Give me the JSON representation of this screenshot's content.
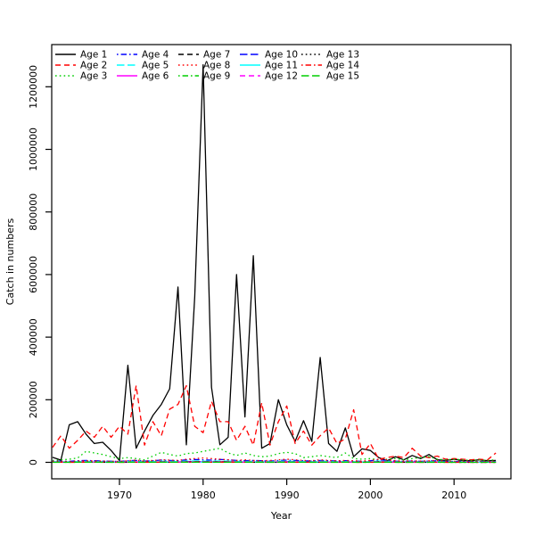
{
  "chart_data": {
    "type": "line",
    "title": "",
    "xlabel": "Year",
    "ylabel": "Catch in numbers",
    "x_ticks": [
      1970,
      1980,
      1990,
      2000,
      2010
    ],
    "y_ticks": [
      0,
      200000,
      400000,
      600000,
      800000,
      1000000,
      1200000
    ],
    "xlim": [
      1961.9,
      2016.8
    ],
    "ylim": [
      -52700,
      1334800
    ],
    "grid": false,
    "legend_position": "top-left",
    "legend_columns": 5,
    "x": [
      1962,
      1963,
      1964,
      1965,
      1966,
      1967,
      1968,
      1969,
      1970,
      1971,
      1972,
      1973,
      1974,
      1975,
      1976,
      1977,
      1978,
      1979,
      1980,
      1981,
      1982,
      1983,
      1984,
      1985,
      1986,
      1987,
      1988,
      1989,
      1990,
      1991,
      1992,
      1993,
      1994,
      1995,
      1996,
      1997,
      1998,
      1999,
      2000,
      2001,
      2002,
      2003,
      2004,
      2005,
      2006,
      2007,
      2008,
      2009,
      2010,
      2011,
      2012,
      2013,
      2014,
      2015
    ],
    "series": [
      {
        "name": "Age 1",
        "color": "#000000",
        "linetype": "solid",
        "values": [
          16000,
          7000,
          120000,
          130000,
          90000,
          60000,
          64000,
          38000,
          6000,
          310000,
          45000,
          100000,
          150000,
          185000,
          235000,
          560000,
          56000,
          530000,
          1270000,
          240000,
          56000,
          80000,
          600000,
          145000,
          660000,
          45000,
          60000,
          200000,
          120000,
          67000,
          133000,
          67000,
          335000,
          60000,
          35000,
          110000,
          18000,
          43000,
          38000,
          15000,
          5000,
          18000,
          8000,
          22000,
          12000,
          25000,
          8000,
          6000,
          10000,
          6000,
          5000,
          8000,
          5000,
          6000
        ]
      },
      {
        "name": "Age 2",
        "color": "#FF0000",
        "linetype": "dashed",
        "values": [
          48000,
          85000,
          45000,
          70000,
          100000,
          80000,
          115000,
          80000,
          115000,
          90000,
          245000,
          55000,
          130000,
          85000,
          170000,
          185000,
          245000,
          115000,
          95000,
          195000,
          130000,
          130000,
          70000,
          115000,
          55000,
          190000,
          55000,
          130000,
          180000,
          60000,
          100000,
          55000,
          85000,
          110000,
          60000,
          75000,
          168000,
          25000,
          60000,
          10000,
          15000,
          20000,
          15000,
          45000,
          20000,
          15000,
          20000,
          10000,
          12000,
          10000,
          8000,
          10000,
          8000,
          30000
        ]
      },
      {
        "name": "Age 3",
        "color": "#00CD00",
        "linetype": "dotted",
        "values": [
          6000,
          8000,
          10000,
          14000,
          35000,
          30000,
          25000,
          18000,
          12000,
          15000,
          12000,
          8000,
          20000,
          32000,
          25000,
          20000,
          28000,
          30000,
          35000,
          40000,
          45000,
          30000,
          22000,
          30000,
          22000,
          18000,
          20000,
          28000,
          32000,
          28000,
          15000,
          18000,
          22000,
          18000,
          15000,
          30000,
          12000,
          10000,
          12000,
          8000,
          10000,
          12000,
          8000,
          12000,
          15000,
          18000,
          10000,
          8000,
          10000,
          8000,
          6000,
          8000,
          6000,
          8000
        ]
      },
      {
        "name": "Age 4",
        "color": "#0000FF",
        "linetype": "dotdash",
        "values": [
          4000,
          4000,
          3000,
          5000,
          6000,
          5000,
          4000,
          3500,
          3000,
          5000,
          6000,
          4000,
          5000,
          7000,
          6000,
          5000,
          8000,
          9000,
          8000,
          7000,
          9000,
          8000,
          6000,
          5000,
          6000,
          5000,
          4000,
          6000,
          7000,
          6000,
          5000,
          4000,
          6000,
          5000,
          4000,
          5000,
          4000,
          3000,
          5000,
          8000,
          6000,
          4000,
          3000,
          4000,
          3000,
          4000,
          5000,
          3000,
          2500,
          3000,
          2500,
          2000,
          2500,
          2000
        ]
      },
      {
        "name": "Age 5",
        "color": "#00FFFF",
        "linetype": "longdash",
        "values": [
          2000,
          2000,
          1500,
          2500,
          3000,
          2500,
          2000,
          1800,
          1500,
          2500,
          3000,
          2000,
          2500,
          3500,
          3000,
          2500,
          4000,
          4500,
          4000,
          3500,
          4500,
          4000,
          3000,
          2500,
          3000,
          2500,
          2000,
          3000,
          3500,
          3000,
          2500,
          2000,
          3000,
          2500,
          2000,
          2500,
          2000,
          1500,
          2500,
          4000,
          3000,
          2000,
          1500,
          2000,
          1500,
          2000,
          2500,
          1500,
          1200,
          1500,
          1200,
          1000,
          1200,
          1000
        ]
      },
      {
        "name": "Age 6",
        "color": "#FF00FF",
        "linetype": "solid",
        "values": [
          1000,
          1000,
          800,
          1200,
          1500,
          1200,
          1000,
          900,
          800,
          1200,
          1500,
          1000,
          1200,
          1800,
          1500,
          1200,
          2000,
          2200,
          2000,
          1800,
          2200,
          2000,
          1500,
          1200,
          1500,
          1200,
          1000,
          1500,
          1800,
          1500,
          1200,
          1000,
          1500,
          1200,
          1000,
          1200,
          1000,
          800,
          1200,
          2000,
          1500,
          1000,
          800,
          1000,
          800,
          1000,
          1200,
          800,
          600,
          800,
          600,
          500,
          600,
          500
        ]
      },
      {
        "name": "Age 7",
        "color": "#000000",
        "linetype": "dashed",
        "values": [
          800,
          800,
          600,
          1000,
          1200,
          1000,
          800,
          700,
          600,
          1000,
          1200,
          800,
          1000,
          1400,
          1200,
          1000,
          1600,
          1800,
          1600,
          1400,
          1800,
          1600,
          1200,
          1000,
          1200,
          1000,
          800,
          1200,
          1400,
          1200,
          1000,
          800,
          1200,
          1000,
          800,
          1000,
          800,
          600,
          1000,
          1600,
          1200,
          800,
          600,
          800,
          600,
          800,
          1000,
          600,
          500,
          600,
          500,
          400,
          500,
          400
        ]
      },
      {
        "name": "Age 8",
        "color": "#FF0000",
        "linetype": "dotted",
        "values": [
          3000,
          3000,
          2500,
          4000,
          5000,
          4500,
          4000,
          3500,
          3000,
          5000,
          7000,
          4000,
          6000,
          8000,
          7000,
          6000,
          10000,
          12000,
          14000,
          12000,
          10000,
          8000,
          6000,
          8000,
          6000,
          5000,
          6000,
          8000,
          10000,
          8000,
          6000,
          5000,
          8000,
          6000,
          5000,
          6000,
          5000,
          4000,
          6000,
          10000,
          8000,
          5000,
          4000,
          5000,
          4000,
          5000,
          6000,
          4000,
          3000,
          4000,
          3000,
          2500,
          3000,
          2500
        ]
      },
      {
        "name": "Age 9",
        "color": "#00CD00",
        "linetype": "dotdash",
        "values": [
          600,
          600,
          500,
          800,
          1000,
          800,
          600,
          550,
          500,
          800,
          1000,
          600,
          800,
          1100,
          1000,
          800,
          1300,
          1400,
          1300,
          1100,
          1400,
          1300,
          1000,
          800,
          1000,
          800,
          600,
          1000,
          1100,
          1000,
          800,
          600,
          1000,
          800,
          600,
          800,
          600,
          500,
          800,
          1300,
          1000,
          600,
          500,
          600,
          500,
          600,
          800,
          500,
          400,
          500,
          400,
          300,
          400,
          300
        ]
      },
      {
        "name": "Age 10",
        "color": "#0000FF",
        "linetype": "longdash",
        "values": [
          500,
          500,
          400,
          600,
          800,
          600,
          500,
          450,
          400,
          600,
          800,
          500,
          600,
          900,
          800,
          600,
          1000,
          1100,
          1000,
          900,
          1100,
          1000,
          800,
          600,
          800,
          600,
          500,
          800,
          900,
          800,
          600,
          500,
          800,
          600,
          500,
          600,
          500,
          400,
          600,
          1000,
          800,
          500,
          400,
          500,
          400,
          500,
          600,
          400,
          300,
          400,
          300,
          250,
          300,
          250
        ]
      },
      {
        "name": "Age 11",
        "color": "#00FFFF",
        "linetype": "solid",
        "values": [
          400,
          400,
          300,
          500,
          600,
          500,
          400,
          350,
          300,
          500,
          600,
          400,
          500,
          700,
          600,
          500,
          800,
          900,
          800,
          700,
          900,
          800,
          600,
          500,
          600,
          500,
          400,
          600,
          700,
          600,
          500,
          400,
          600,
          500,
          400,
          500,
          400,
          300,
          500,
          800,
          600,
          400,
          300,
          400,
          300,
          400,
          500,
          300,
          250,
          300,
          250,
          200,
          250,
          200
        ]
      },
      {
        "name": "Age 12",
        "color": "#FF00FF",
        "linetype": "dashed",
        "values": [
          300,
          300,
          250,
          400,
          500,
          400,
          300,
          280,
          250,
          400,
          500,
          300,
          400,
          550,
          500,
          400,
          650,
          700,
          650,
          550,
          700,
          650,
          500,
          400,
          500,
          400,
          300,
          500,
          550,
          500,
          400,
          300,
          500,
          400,
          300,
          400,
          300,
          250,
          400,
          650,
          500,
          300,
          250,
          300,
          250,
          300,
          400,
          250,
          200,
          250,
          200,
          150,
          200,
          150
        ]
      },
      {
        "name": "Age 13",
        "color": "#000000",
        "linetype": "dotted",
        "values": [
          250,
          250,
          200,
          300,
          400,
          300,
          250,
          220,
          200,
          300,
          400,
          250,
          300,
          450,
          400,
          300,
          500,
          550,
          500,
          450,
          550,
          500,
          400,
          300,
          400,
          300,
          250,
          400,
          450,
          400,
          300,
          250,
          400,
          300,
          250,
          300,
          250,
          200,
          300,
          500,
          400,
          250,
          200,
          250,
          200,
          250,
          300,
          200,
          150,
          200,
          150,
          120,
          150,
          120
        ]
      },
      {
        "name": "Age 14",
        "color": "#FF0000",
        "linetype": "dotdash",
        "values": [
          200,
          200,
          150,
          250,
          300,
          250,
          200,
          180,
          150,
          250,
          300,
          200,
          250,
          350,
          300,
          250,
          400,
          450,
          400,
          350,
          450,
          400,
          300,
          250,
          300,
          250,
          200,
          300,
          350,
          300,
          250,
          200,
          300,
          250,
          200,
          250,
          200,
          150,
          250,
          400,
          300,
          200,
          150,
          200,
          150,
          200,
          250,
          150,
          120,
          150,
          120,
          100,
          120,
          100
        ]
      },
      {
        "name": "Age 15",
        "color": "#00CD00",
        "linetype": "longdash",
        "values": [
          150,
          150,
          120,
          200,
          250,
          200,
          150,
          140,
          120,
          200,
          250,
          150,
          200,
          280,
          250,
          200,
          320,
          350,
          320,
          280,
          350,
          320,
          250,
          200,
          250,
          200,
          150,
          250,
          280,
          250,
          200,
          150,
          250,
          200,
          150,
          200,
          150,
          120,
          200,
          320,
          250,
          150,
          120,
          150,
          120,
          150,
          200,
          120,
          100,
          120,
          100,
          80,
          100,
          80
        ]
      }
    ]
  }
}
